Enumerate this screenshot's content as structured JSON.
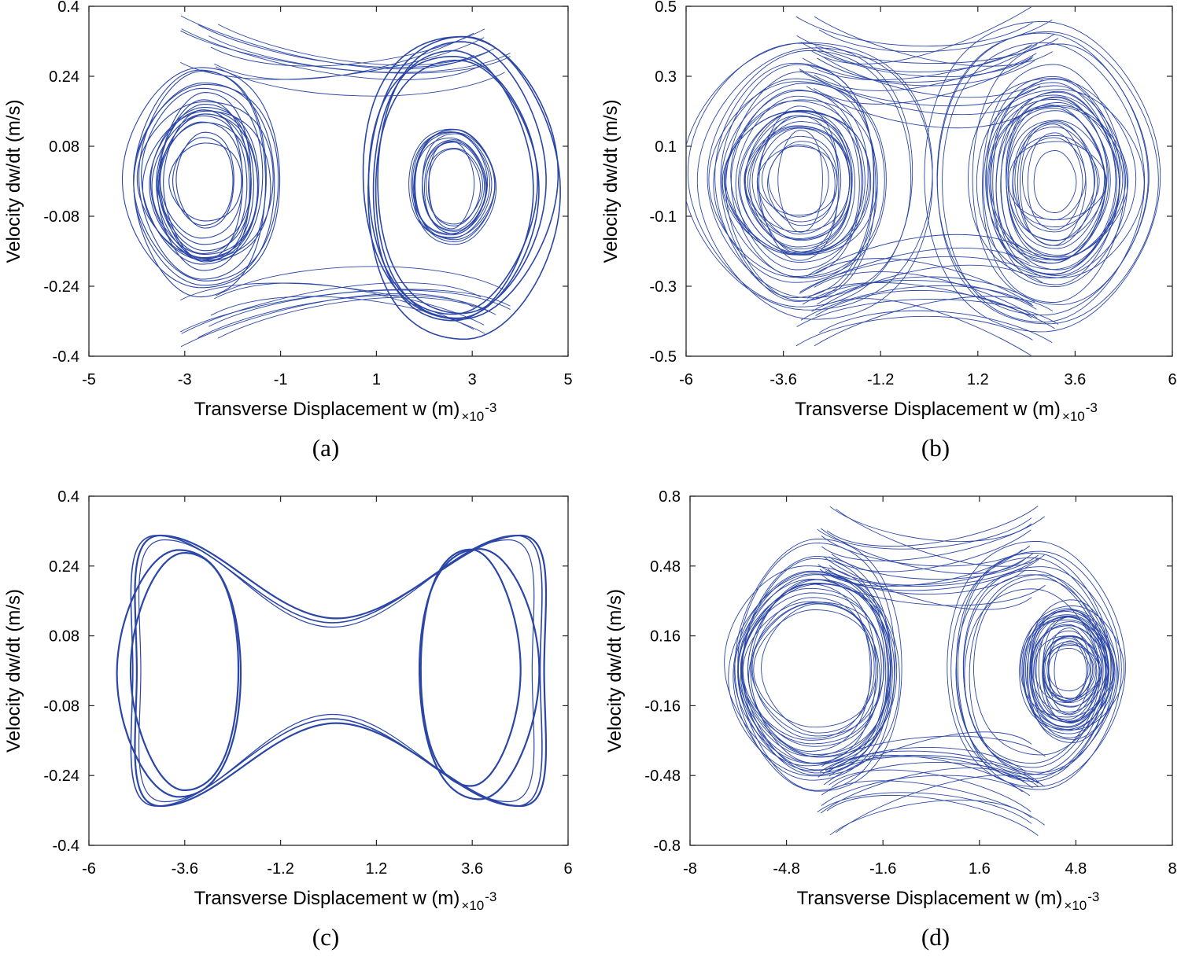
{
  "figure": {
    "line_color": "#2b46a6"
  },
  "chart_data": [
    {
      "id": "a",
      "type": "line",
      "caption": "(a)",
      "xlabel": "Transverse  Displacement  w  (m)",
      "ylabel": "Velocity  dw/dt  (m/s)",
      "x_scale_label": "×10",
      "x_scale_exponent": "-3",
      "xlim": [
        -5,
        5
      ],
      "ylim": [
        -0.4,
        0.4
      ],
      "xticks": [
        "-5",
        "-3",
        "-1",
        "1",
        "3",
        "5"
      ],
      "yticks": [
        "-0.4",
        "-0.24",
        "-0.08",
        "0.08",
        "0.24",
        "0.4"
      ],
      "description": "phase portrait, chaotic motion, two-well attractor",
      "loops": [
        {
          "cx": -2.6,
          "cy": 0.0,
          "rx": [
            0.5,
            1.7
          ],
          "ry": [
            0.08,
            0.27
          ],
          "count": 22,
          "lw": 1.1
        },
        {
          "cx": 2.6,
          "cy": -0.01,
          "rx": [
            0.45,
            0.95
          ],
          "ry": [
            0.08,
            0.14
          ],
          "count": 14,
          "lw": 1.0
        },
        {
          "cx": 2.7,
          "cy": 0.0,
          "rx": [
            1.5,
            2.1
          ],
          "ry": [
            0.28,
            0.35
          ],
          "count": 6,
          "lw": 1.6
        }
      ],
      "bridges": {
        "count": 10,
        "x_left": -1.5,
        "x_right": 2.2,
        "y_mid": [
          0.16,
          0.24
        ],
        "spread": 0.08
      }
    },
    {
      "id": "b",
      "type": "line",
      "caption": "(b)",
      "xlabel": "Transverse  Displacement  w  (m)",
      "ylabel": "Velocity  dw/dt  (m/s)",
      "x_scale_label": "×10",
      "x_scale_exponent": "-3",
      "xlim": [
        -6,
        6
      ],
      "ylim": [
        -0.5,
        0.5
      ],
      "xticks": [
        "-6",
        "-3.6",
        "-1.2",
        "1.2",
        "3.6",
        "6"
      ],
      "yticks": [
        "-0.5",
        "-0.3",
        "-0.1",
        "0.1",
        "0.3",
        "0.5"
      ],
      "description": "phase portrait, chaotic motion, dense two-well attractor",
      "loops": [
        {
          "cx": -3.2,
          "cy": 0.0,
          "rx": [
            0.5,
            2.3
          ],
          "ry": [
            0.07,
            0.35
          ],
          "count": 30,
          "lw": 0.9
        },
        {
          "cx": 3.1,
          "cy": 0.0,
          "rx": [
            0.5,
            2.2
          ],
          "ry": [
            0.07,
            0.36
          ],
          "count": 30,
          "lw": 0.9
        },
        {
          "cx": -3.0,
          "cy": 0.0,
          "rx": [
            2.4,
            3.1
          ],
          "ry": [
            0.36,
            0.42
          ],
          "count": 4,
          "lw": 0.9
        },
        {
          "cx": 3.0,
          "cy": 0.0,
          "rx": [
            2.4,
            3.1
          ],
          "ry": [
            0.36,
            0.42
          ],
          "count": 4,
          "lw": 0.9
        }
      ],
      "bridges": {
        "count": 16,
        "x_left": -1.8,
        "x_right": 1.6,
        "y_mid": [
          0.12,
          0.3
        ],
        "spread": 0.1
      }
    },
    {
      "id": "c",
      "type": "line",
      "caption": "(c)",
      "xlabel": "Transverse  Displacement  w  (m)",
      "ylabel": "Velocity  dw/dt  (m/s)",
      "x_scale_label": "×10",
      "x_scale_exponent": "-3",
      "xlim": [
        -6,
        6
      ],
      "ylim": [
        -0.4,
        0.4
      ],
      "xticks": [
        "-6",
        "-3.6",
        "-1.2",
        "1.2",
        "3.6",
        "6"
      ],
      "yticks": [
        "-0.4",
        "-0.24",
        "-0.08",
        "0.08",
        "0.24",
        "0.4"
      ],
      "description": "phase portrait, quasi-periodic cross-well motion",
      "loops": [
        {
          "cx": -3.6,
          "cy": 0.0,
          "rx": [
            1.35,
            1.35
          ],
          "ry": [
            0.265,
            0.265
          ],
          "count": 1,
          "lw": 2.2
        },
        {
          "cx": -3.65,
          "cy": 0.0,
          "rx": [
            1.55,
            1.55
          ],
          "ry": [
            0.29,
            0.29
          ],
          "count": 1,
          "lw": 2.2
        },
        {
          "cx": 3.6,
          "cy": 0.0,
          "rx": [
            1.25,
            1.25
          ],
          "ry": [
            0.255,
            0.255
          ],
          "count": 1,
          "lw": 2.2
        },
        {
          "cx": 3.7,
          "cy": 0.0,
          "rx": [
            1.5,
            1.5
          ],
          "ry": [
            0.29,
            0.29
          ],
          "count": 1,
          "lw": 2.2
        }
      ],
      "hourglass": [
        {
          "xl": -4.8,
          "xr": 5.4,
          "ytop": 0.31,
          "yneck": 0.12,
          "lw": 2.2
        },
        {
          "xl": -4.9,
          "xr": 5.3,
          "ytop": 0.31,
          "yneck": 0.11,
          "lw": 1.6
        },
        {
          "xl": -4.7,
          "xr": 5.1,
          "ytop": 0.3,
          "yneck": 0.1,
          "lw": 1.2
        }
      ]
    },
    {
      "id": "d",
      "type": "line",
      "caption": "(d)",
      "xlabel": "Transverse  Displacement  w  (m)",
      "ylabel": "Velocity  dw/dt  (m/s)",
      "x_scale_label": "×10",
      "x_scale_exponent": "-3",
      "xlim": [
        -8,
        8
      ],
      "ylim": [
        -0.8,
        0.8
      ],
      "xticks": [
        "-8",
        "-4.8",
        "-1.6",
        "1.6",
        "4.8",
        "8"
      ],
      "yticks": [
        "-0.8",
        "-0.48",
        "-0.16",
        "0.16",
        "0.48",
        "0.8"
      ],
      "description": "phase portrait, chaotic motion with asymmetric wells",
      "loops": [
        {
          "cx": -3.9,
          "cy": 0.0,
          "rx": [
            1.7,
            3.0
          ],
          "ry": [
            0.25,
            0.58
          ],
          "count": 24,
          "lw": 0.9
        },
        {
          "cx": 4.6,
          "cy": 0.0,
          "rx": [
            0.4,
            1.8
          ],
          "ry": [
            0.08,
            0.35
          ],
          "count": 30,
          "lw": 0.9
        },
        {
          "cx": 3.5,
          "cy": 0.0,
          "rx": [
            2.0,
            3.0
          ],
          "ry": [
            0.35,
            0.6
          ],
          "count": 10,
          "lw": 0.9
        }
      ],
      "bridges": {
        "count": 16,
        "x_left": -2.2,
        "x_right": 2.2,
        "y_mid": [
          0.2,
          0.45
        ],
        "spread": 0.15
      }
    }
  ]
}
